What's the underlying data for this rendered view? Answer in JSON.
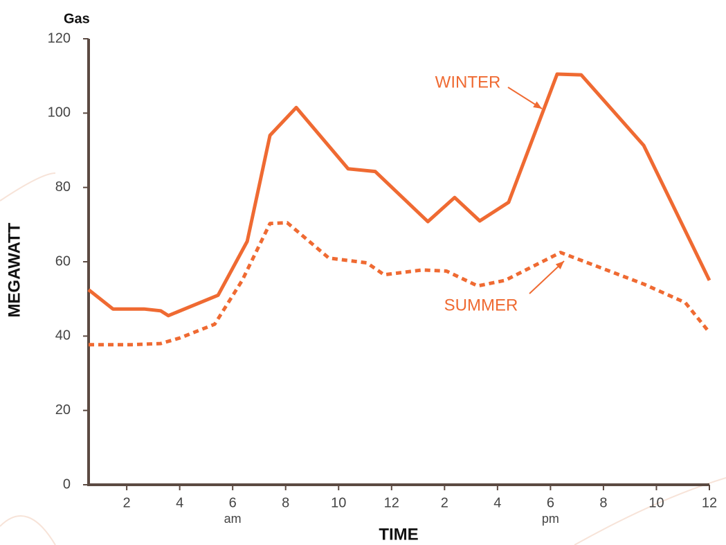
{
  "chart_data": {
    "type": "line",
    "title": "Gas",
    "ylabel": "MEGAWATT",
    "xlabel": "TIME",
    "xlim": [
      0.56,
      24
    ],
    "ylim": [
      0,
      120
    ],
    "xticks": [
      2,
      4,
      6,
      8,
      10,
      12,
      {
        "value": 14,
        "label": "2"
      },
      {
        "value": 16,
        "label": "4"
      },
      {
        "value": 18,
        "label": "6"
      },
      {
        "value": 20,
        "label": "8"
      },
      {
        "value": 22,
        "label": "10"
      },
      {
        "value": 24,
        "label": "12"
      }
    ],
    "yticks": [
      0,
      20,
      40,
      60,
      80,
      100,
      120
    ],
    "annotations": [
      {
        "text": "am",
        "x": 6
      },
      {
        "text": "pm",
        "x": 18
      }
    ],
    "axis_color": "#5b4a42",
    "series": [
      {
        "name": "WINTER",
        "color": "#ef6a32",
        "style": "solid",
        "x": [
          0.56,
          1.48,
          2.65,
          3.28,
          3.57,
          5.45,
          6.55,
          7.41,
          8.4,
          10.36,
          11.38,
          13.37,
          14.38,
          15.33,
          16.42,
          18.25,
          19.16,
          21.52,
          24
        ],
        "values": [
          52.5,
          47.3,
          47.3,
          46.8,
          45.5,
          51,
          65.5,
          94,
          101.5,
          85,
          84.3,
          70.8,
          77.3,
          71,
          76,
          110.5,
          110.3,
          91.3,
          55
        ]
      },
      {
        "name": "SUMMER",
        "color": "#ef6a32",
        "style": "dotted",
        "x": [
          0.56,
          2.18,
          3.28,
          4.01,
          5.32,
          6.36,
          7.41,
          8.06,
          9.63,
          11.07,
          11.72,
          13.16,
          14.07,
          15.25,
          16.29,
          18.38,
          21.52,
          23.09,
          24
        ],
        "values": [
          37.7,
          37.7,
          38,
          39.5,
          43.2,
          55,
          70.3,
          70.5,
          61,
          59.7,
          56.5,
          57.8,
          57.5,
          53.5,
          55,
          62.5,
          54,
          49,
          41
        ]
      }
    ]
  }
}
